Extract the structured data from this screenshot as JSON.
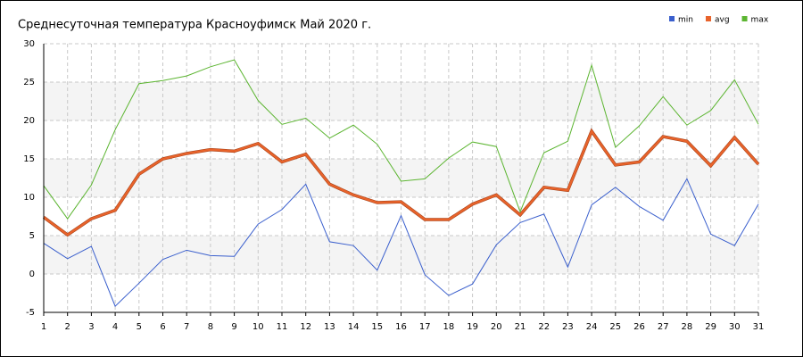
{
  "chart_data": {
    "type": "line",
    "title": "Среднесуточная температура Красноуфимск  Май 2020 г.",
    "categories": [
      "1",
      "2",
      "3",
      "4",
      "5",
      "6",
      "7",
      "8",
      "9",
      "10",
      "11",
      "12",
      "13",
      "14",
      "15",
      "16",
      "17",
      "18",
      "19",
      "20",
      "21",
      "22",
      "23",
      "24",
      "25",
      "26",
      "27",
      "28",
      "29",
      "30",
      "31"
    ],
    "series": [
      {
        "name": "min",
        "color": "#3a5fcd",
        "values": [
          4.0,
          2.0,
          3.6,
          -4.2,
          -1.2,
          1.9,
          3.1,
          2.4,
          2.3,
          6.5,
          8.4,
          11.7,
          4.2,
          3.7,
          0.5,
          7.6,
          -0.1,
          -2.8,
          -1.3,
          3.8,
          6.7,
          7.8,
          0.9,
          9.0,
          11.3,
          8.8,
          7.0,
          12.4,
          5.2,
          3.7,
          9.1
        ]
      },
      {
        "name": "avg",
        "color": "#e8632b",
        "values": [
          7.4,
          5.1,
          7.2,
          8.3,
          13.0,
          15.0,
          15.7,
          16.2,
          16.0,
          17.0,
          14.6,
          15.6,
          11.7,
          10.3,
          9.3,
          9.4,
          7.1,
          7.1,
          9.1,
          10.3,
          7.7,
          11.3,
          10.9,
          18.6,
          14.2,
          14.6,
          17.9,
          17.3,
          14.1,
          17.8,
          14.3
        ]
      },
      {
        "name": "max",
        "color": "#5cb531",
        "values": [
          11.5,
          7.2,
          11.6,
          18.8,
          24.8,
          25.2,
          25.8,
          27.0,
          27.9,
          22.6,
          19.5,
          20.3,
          17.7,
          19.4,
          16.9,
          12.1,
          12.4,
          15.1,
          17.2,
          16.6,
          8.1,
          15.8,
          17.3,
          27.2,
          16.5,
          19.3,
          23.1,
          19.4,
          21.3,
          25.3,
          19.5
        ]
      }
    ],
    "ylim": [
      -5,
      30
    ],
    "yticks": [
      -5,
      0,
      5,
      10,
      15,
      20,
      25,
      30
    ],
    "grid": true,
    "legend": "top-right"
  }
}
